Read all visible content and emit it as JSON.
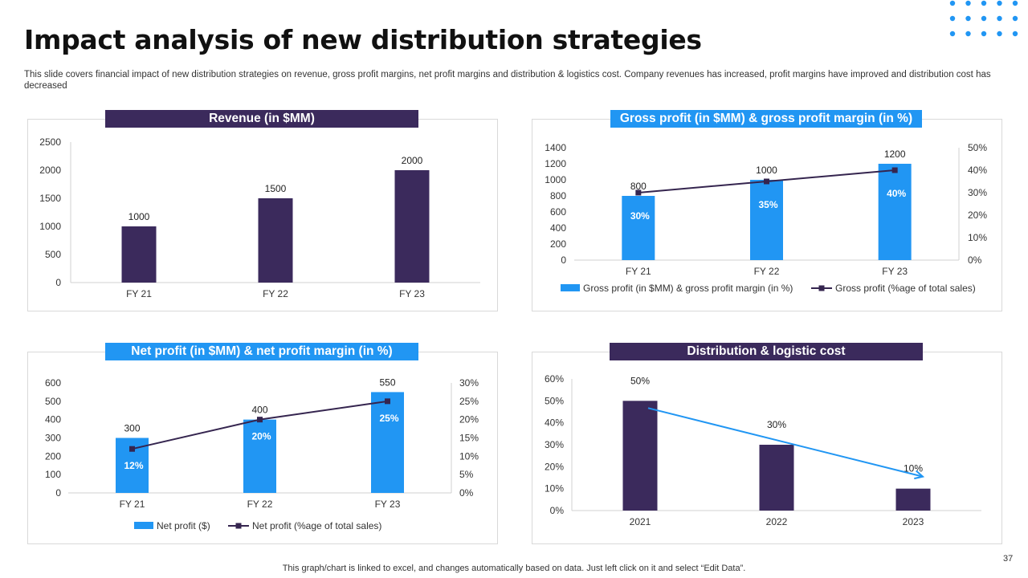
{
  "slide": {
    "title": "Impact analysis of new distribution strategies",
    "subtitle": "This slide covers financial impact of new distribution strategies on revenue, gross profit margins, net profit margins and distribution & logistics cost. Company revenues has increased, profit margins have improved and distribution cost has decreased",
    "footer": "This graph/chart is linked to excel,  and changes automatically based on data. Just left click on it and select “Edit Data”.",
    "page_number": "37"
  },
  "colors": {
    "purple": "#3b2a5c",
    "blue": "#2196f3",
    "line_dark": "#35254f"
  },
  "chart_data": [
    {
      "id": "revenue",
      "type": "bar",
      "title": "Revenue (in $MM)",
      "categories": [
        "FY 21",
        "FY 22",
        "FY 23"
      ],
      "values": [
        1000,
        1500,
        2000
      ],
      "data_labels": [
        "1000",
        "1500",
        "2000"
      ],
      "ylim": [
        0,
        2500
      ],
      "yticks": [
        "0",
        "500",
        "1000",
        "1500",
        "2000",
        "2500"
      ],
      "legend": []
    },
    {
      "id": "gross",
      "type": "bar+line",
      "title": "Gross profit (in $MM) & gross profit margin (in %)",
      "categories": [
        "FY 21",
        "FY 22",
        "FY 23"
      ],
      "bar_values": [
        800,
        1000,
        1200
      ],
      "bar_labels": [
        "800",
        "1000",
        "1200"
      ],
      "line_values": [
        30,
        35,
        40
      ],
      "line_labels": [
        "30%",
        "35%",
        "40%"
      ],
      "ylim": [
        0,
        1400
      ],
      "yticks": [
        "0",
        "200",
        "400",
        "600",
        "800",
        "1000",
        "1200",
        "1400"
      ],
      "y2lim": [
        0,
        50
      ],
      "y2ticks": [
        "0%",
        "10%",
        "20%",
        "30%",
        "40%",
        "50%"
      ],
      "legend": [
        "Gross profit (in $MM) & gross profit margin (in %)",
        "Gross profit (%age of total sales)"
      ]
    },
    {
      "id": "net",
      "type": "bar+line",
      "title": "Net profit (in $MM) & net profit margin (in %)",
      "categories": [
        "FY 21",
        "FY 22",
        "FY 23"
      ],
      "bar_values": [
        300,
        400,
        550
      ],
      "bar_labels": [
        "300",
        "400",
        "550"
      ],
      "line_values": [
        12,
        20,
        25
      ],
      "line_labels": [
        "12%",
        "20%",
        "25%"
      ],
      "ylim": [
        0,
        600
      ],
      "yticks": [
        "0",
        "100",
        "200",
        "300",
        "400",
        "500",
        "600"
      ],
      "y2lim": [
        0,
        30
      ],
      "y2ticks": [
        "0%",
        "5%",
        "10%",
        "15%",
        "20%",
        "25%",
        "30%"
      ],
      "legend": [
        "Net profit ($)",
        "Net profit (%age of total sales)"
      ]
    },
    {
      "id": "dist",
      "type": "bar",
      "title": "Distribution & logistic cost",
      "categories": [
        "2021",
        "2022",
        "2023"
      ],
      "values": [
        50,
        30,
        10
      ],
      "data_labels": [
        "50%",
        "30%",
        "10%"
      ],
      "ylim": [
        0,
        60
      ],
      "yticks": [
        "0%",
        "10%",
        "20%",
        "30%",
        "40%",
        "50%",
        "60%"
      ],
      "trend": "decreasing",
      "legend": []
    }
  ]
}
